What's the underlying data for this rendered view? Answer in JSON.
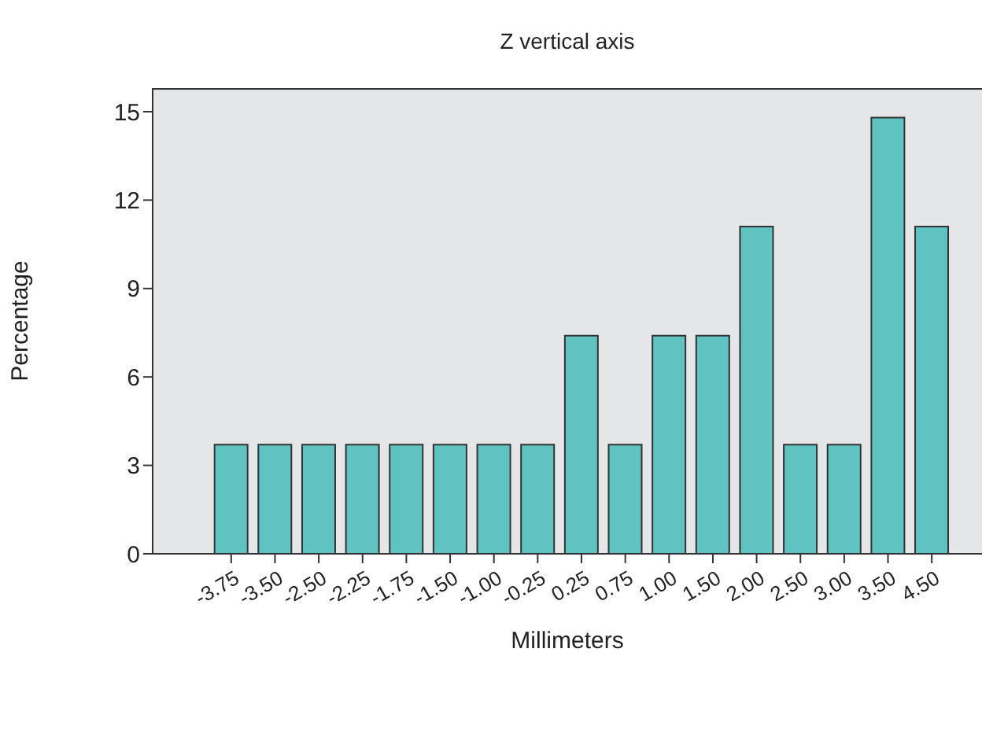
{
  "chart_data": {
    "type": "bar",
    "title": "Z vertical axis",
    "xlabel": "Millimeters",
    "ylabel": "Percentage",
    "categories": [
      "-3.75",
      "-3.50",
      "-2.50",
      "-2.25",
      "-1.75",
      "-1.50",
      "-1.00",
      "-0.25",
      "0.25",
      "0.75",
      "1.00",
      "1.50",
      "2.00",
      "2.50",
      "3.00",
      "3.50",
      "4.50"
    ],
    "values": [
      3.7,
      3.7,
      3.7,
      3.7,
      3.7,
      3.7,
      3.7,
      3.7,
      7.4,
      3.7,
      7.4,
      7.4,
      11.1,
      3.7,
      3.7,
      14.8,
      11.1
    ],
    "color": "#5fc3c2",
    "ylim": [
      0,
      15.8
    ],
    "yticks": [
      0,
      3,
      6,
      9,
      12,
      15
    ],
    "grid": false,
    "legend": false
  }
}
